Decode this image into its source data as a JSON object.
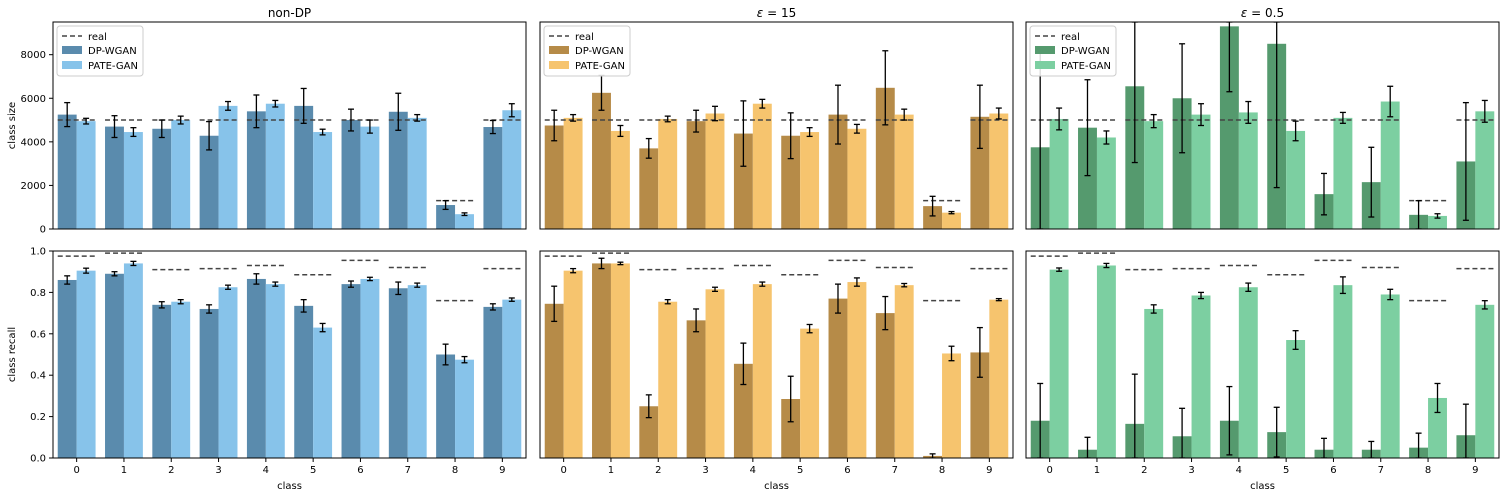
{
  "chart_data": {
    "type": "bar",
    "categories": [
      "0",
      "1",
      "2",
      "3",
      "4",
      "5",
      "6",
      "7",
      "8",
      "9"
    ],
    "xlabel": "class",
    "legend_labels": {
      "real": "real",
      "dp": "DP-WGAN",
      "pate": "PATE-GAN"
    },
    "colors": {
      "nondp": {
        "dp": "#5a8bad",
        "pate": "#87c3ea"
      },
      "eps15": {
        "dp": "#b68b48",
        "pate": "#f6c46e"
      },
      "eps05": {
        "dp": "#559a6e",
        "pate": "#7ccfa1"
      }
    },
    "rows": {
      "size": {
        "ylabel": "class size",
        "ylim": [
          0,
          9500
        ],
        "yticks": [
          0,
          2000,
          4000,
          6000,
          8000
        ],
        "tick_labels": [
          "0",
          "2000",
          "4000",
          "6000",
          "8000"
        ]
      },
      "recall": {
        "ylabel": "class recall",
        "ylim": [
          0,
          1.0
        ],
        "yticks": [
          0,
          0.2,
          0.4,
          0.6,
          0.8,
          1.0
        ],
        "tick_labels": [
          "0.0",
          "0.2",
          "0.4",
          "0.6",
          "0.8",
          "1.0"
        ]
      }
    },
    "columns": [
      {
        "key": "nondp",
        "title": "non-DP",
        "title_prefix": "",
        "title_var": "",
        "title_rest": ""
      },
      {
        "key": "eps15",
        "title": "ε = 15",
        "title_prefix": "",
        "title_var": "ε",
        "title_rest": " = 15"
      },
      {
        "key": "eps05",
        "title": "ε = 0.5",
        "title_prefix": "",
        "title_var": "ε",
        "title_rest": " = 0.5"
      }
    ],
    "panels": {
      "nondp": {
        "size": {
          "real": [
            5000,
            5000,
            5000,
            5000,
            5000,
            5000,
            5000,
            5000,
            1300,
            5000
          ],
          "dp": {
            "values": [
              5250,
              4700,
              4600,
              4280,
              5400,
              5650,
              5000,
              5380,
              1100,
              4680
            ],
            "err": [
              550,
              500,
              400,
              650,
              750,
              800,
              500,
              850,
              200,
              300
            ]
          },
          "pate": {
            "values": [
              4950,
              4450,
              5000,
              5650,
              5750,
              4450,
              4700,
              5100,
              680,
              5450
            ],
            "err": [
              130,
              200,
              180,
              200,
              150,
              130,
              300,
              150,
              60,
              300
            ]
          }
        },
        "recall": {
          "real": [
            0.975,
            0.99,
            0.91,
            0.915,
            0.93,
            0.885,
            0.955,
            0.92,
            0.76,
            0.915
          ],
          "dp": {
            "values": [
              0.86,
              0.89,
              0.74,
              0.72,
              0.865,
              0.735,
              0.84,
              0.82,
              0.5,
              0.73
            ],
            "err": [
              0.02,
              0.01,
              0.015,
              0.02,
              0.025,
              0.03,
              0.015,
              0.03,
              0.05,
              0.015
            ]
          },
          "pate": {
            "values": [
              0.905,
              0.94,
              0.755,
              0.825,
              0.84,
              0.63,
              0.865,
              0.835,
              0.475,
              0.765
            ],
            "err": [
              0.012,
              0.01,
              0.01,
              0.01,
              0.01,
              0.02,
              0.008,
              0.01,
              0.015,
              0.008
            ]
          }
        }
      },
      "eps15": {
        "size": {
          "real": [
            5000,
            5000,
            5000,
            5000,
            5000,
            5000,
            5000,
            5000,
            1300,
            5000
          ],
          "dp": {
            "values": [
              4750,
              6250,
              3700,
              4950,
              4380,
              4280,
              5250,
              6480,
              1050,
              5150
            ],
            "err": [
              700,
              800,
              450,
              500,
              1500,
              1050,
              1350,
              1700,
              450,
              1450
            ]
          },
          "pate": {
            "values": [
              5100,
              4500,
              5050,
              5300,
              5750,
              4450,
              4600,
              5250,
              750,
              5300
            ],
            "err": [
              150,
              250,
              130,
              330,
              200,
              200,
              200,
              250,
              50,
              250
            ]
          }
        },
        "recall": {
          "real": [
            0.975,
            0.99,
            0.91,
            0.915,
            0.93,
            0.885,
            0.955,
            0.92,
            0.76,
            0.915
          ],
          "dp": {
            "values": [
              0.745,
              0.94,
              0.25,
              0.665,
              0.455,
              0.285,
              0.77,
              0.7,
              0.01,
              0.51
            ],
            "err": [
              0.085,
              0.025,
              0.055,
              0.055,
              0.1,
              0.11,
              0.07,
              0.08,
              0.01,
              0.12
            ]
          },
          "pate": {
            "values": [
              0.905,
              0.94,
              0.755,
              0.815,
              0.84,
              0.625,
              0.85,
              0.835,
              0.505,
              0.765
            ],
            "err": [
              0.01,
              0.006,
              0.01,
              0.01,
              0.01,
              0.02,
              0.02,
              0.008,
              0.035,
              0.005
            ]
          }
        }
      },
      "eps05": {
        "size": {
          "real": [
            5000,
            5000,
            5000,
            5000,
            5000,
            5000,
            5000,
            5000,
            1300,
            5000
          ],
          "dp": {
            "values": [
              3750,
              4650,
              6550,
              6000,
              9300,
              8500,
              1600,
              2150,
              650,
              3100
            ],
            "err": [
              4500,
              2200,
              3500,
              2500,
              3000,
              6600,
              950,
              1600,
              650,
              2700
            ]
          },
          "pate": {
            "values": [
              5050,
              4200,
              4950,
              5250,
              5350,
              4500,
              5100,
              5850,
              600,
              5400
            ],
            "err": [
              500,
              300,
              300,
              500,
              500,
              450,
              250,
              700,
              100,
              500
            ]
          }
        },
        "recall": {
          "real": [
            0.975,
            0.99,
            0.91,
            0.915,
            0.93,
            0.885,
            0.955,
            0.92,
            0.76,
            0.915
          ],
          "dp": {
            "values": [
              0.18,
              0.04,
              0.165,
              0.105,
              0.18,
              0.125,
              0.04,
              0.04,
              0.05,
              0.11
            ],
            "err": [
              0.18,
              0.06,
              0.24,
              0.135,
              0.165,
              0.12,
              0.055,
              0.04,
              0.07,
              0.15
            ]
          },
          "pate": {
            "values": [
              0.91,
              0.93,
              0.72,
              0.785,
              0.825,
              0.57,
              0.835,
              0.79,
              0.29,
              0.74
            ],
            "err": [
              0.008,
              0.01,
              0.02,
              0.015,
              0.02,
              0.045,
              0.04,
              0.025,
              0.07,
              0.02
            ]
          }
        }
      }
    }
  }
}
